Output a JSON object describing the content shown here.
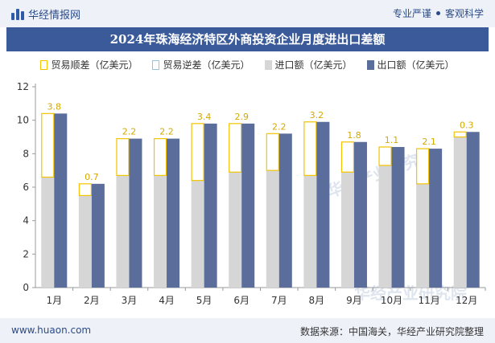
{
  "header": {
    "brand": "华经情报网",
    "tag1": "专业严谨",
    "tag2": "客观科学"
  },
  "title": "2024年珠海经济特区外商投资企业月度进出口差额",
  "legend": {
    "surplus": "贸易顺差（亿美元）",
    "deficit": "贸易逆差（亿美元）",
    "imports": "进口额（亿美元）",
    "exports": "出口额（亿美元）"
  },
  "footer": {
    "site": "www.huaon.com",
    "source": "数据来源：中国海关，华经产业研究院整理"
  },
  "watermark": "华经产业研究院",
  "colors": {
    "surplus": "#f3c300",
    "deficit": "#8fc4e8",
    "imports": "#d6d6d6",
    "exports": "#5b6d9b",
    "title_bg": "#3a5a9a"
  },
  "chart_data": {
    "type": "bar",
    "categories": [
      "1月",
      "2月",
      "3月",
      "4月",
      "5月",
      "6月",
      "7月",
      "8月",
      "9月",
      "10月",
      "11月",
      "12月"
    ],
    "series": [
      {
        "name": "进口额（亿美元）",
        "values": [
          6.6,
          5.5,
          6.7,
          6.7,
          6.4,
          6.9,
          7.0,
          6.7,
          6.9,
          7.3,
          6.2,
          9.0
        ]
      },
      {
        "name": "出口额（亿美元）",
        "values": [
          10.4,
          6.2,
          8.9,
          8.9,
          9.8,
          9.8,
          9.2,
          9.9,
          8.7,
          8.4,
          8.3,
          9.3
        ]
      },
      {
        "name": "贸易顺差（亿美元）",
        "values": [
          3.8,
          0.7,
          2.2,
          2.2,
          3.4,
          2.9,
          2.2,
          3.2,
          1.8,
          1.1,
          2.1,
          0.3
        ]
      },
      {
        "name": "贸易逆差（亿美元）",
        "values": [
          0,
          0,
          0,
          0,
          0,
          0,
          0,
          0,
          0,
          0,
          0,
          0
        ]
      }
    ],
    "ylim": [
      0,
      12
    ],
    "yticks": [
      0,
      2,
      4,
      6,
      8,
      10,
      12
    ],
    "grid": false,
    "legend_position": "top"
  }
}
